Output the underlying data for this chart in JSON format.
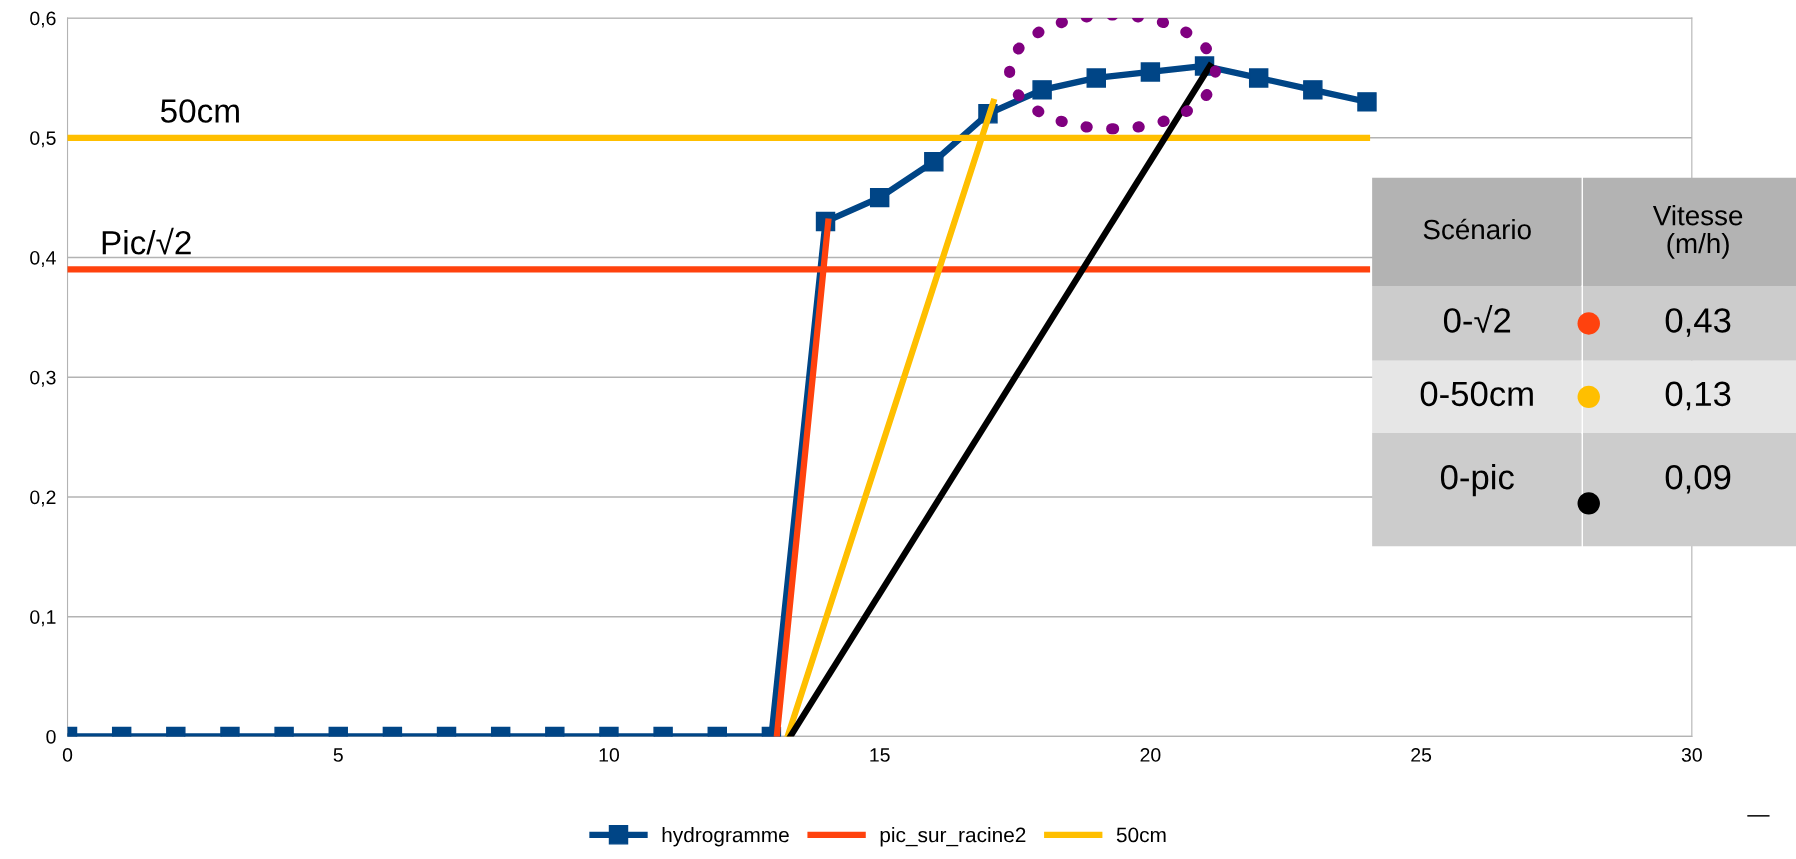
{
  "chart_data": {
    "type": "line",
    "xlabel": "—",
    "xlim": [
      0,
      30
    ],
    "xticks": [
      0,
      5,
      10,
      15,
      20,
      25,
      30
    ],
    "ylim": [
      0,
      0.6
    ],
    "yticks": [
      {
        "value": 0,
        "label": "0"
      },
      {
        "value": 0.1,
        "label": "0,1"
      },
      {
        "value": 0.2,
        "label": "0,2"
      },
      {
        "value": 0.3,
        "label": "0,3"
      },
      {
        "value": 0.4,
        "label": "0,4"
      },
      {
        "value": 0.5,
        "label": "0,5"
      },
      {
        "value": 0.6,
        "label": "0,6"
      }
    ],
    "grid": "y",
    "legend": "bottom",
    "line_style": "solid",
    "series": [
      {
        "name": "hydrogramme",
        "color": "#004586",
        "marker": "square",
        "x": [
          0,
          1,
          2,
          3,
          4,
          5,
          6,
          7,
          8,
          9,
          10,
          11,
          12,
          13,
          14,
          15,
          16,
          17,
          18,
          19,
          20,
          21,
          22,
          23,
          24
        ],
        "values": [
          0,
          0,
          0,
          0,
          0,
          0,
          0,
          0,
          0,
          0,
          0,
          0,
          0,
          0,
          0.43,
          0.45,
          0.48,
          0.52,
          0.54,
          0.55,
          0.555,
          0.56,
          0.55,
          0.54,
          0.53
        ]
      },
      {
        "name": "pic_sur_racine2",
        "color": "#ff420e",
        "x": [
          0,
          24
        ],
        "values": [
          0.39,
          0.39
        ]
      },
      {
        "name": "50cm",
        "color": "#ffbf00",
        "x": [
          0,
          24
        ],
        "values": [
          0.5,
          0.5
        ]
      },
      {
        "color": "#ff420e",
        "x": [
          13.1,
          14.05
        ],
        "values": [
          0,
          0.43
        ]
      },
      {
        "color": "#ffbf00",
        "x": [
          13.3,
          17.1
        ],
        "values": [
          0,
          0.53
        ]
      },
      {
        "color": "#000000",
        "x": [
          13.35,
          21.1
        ],
        "values": [
          0,
          0.56
        ]
      }
    ],
    "annotations": [
      {
        "text": "50cm",
        "x": 1.7,
        "y": 0.5
      },
      {
        "text": "Pic/√2",
        "x": 0.6,
        "y": 0.39
      },
      "Scénario",
      "Vitesse\n(m/h)",
      "0-√2",
      "0,43",
      "0-50cm",
      "0,13",
      "0-pic",
      "0,09"
    ]
  }
}
